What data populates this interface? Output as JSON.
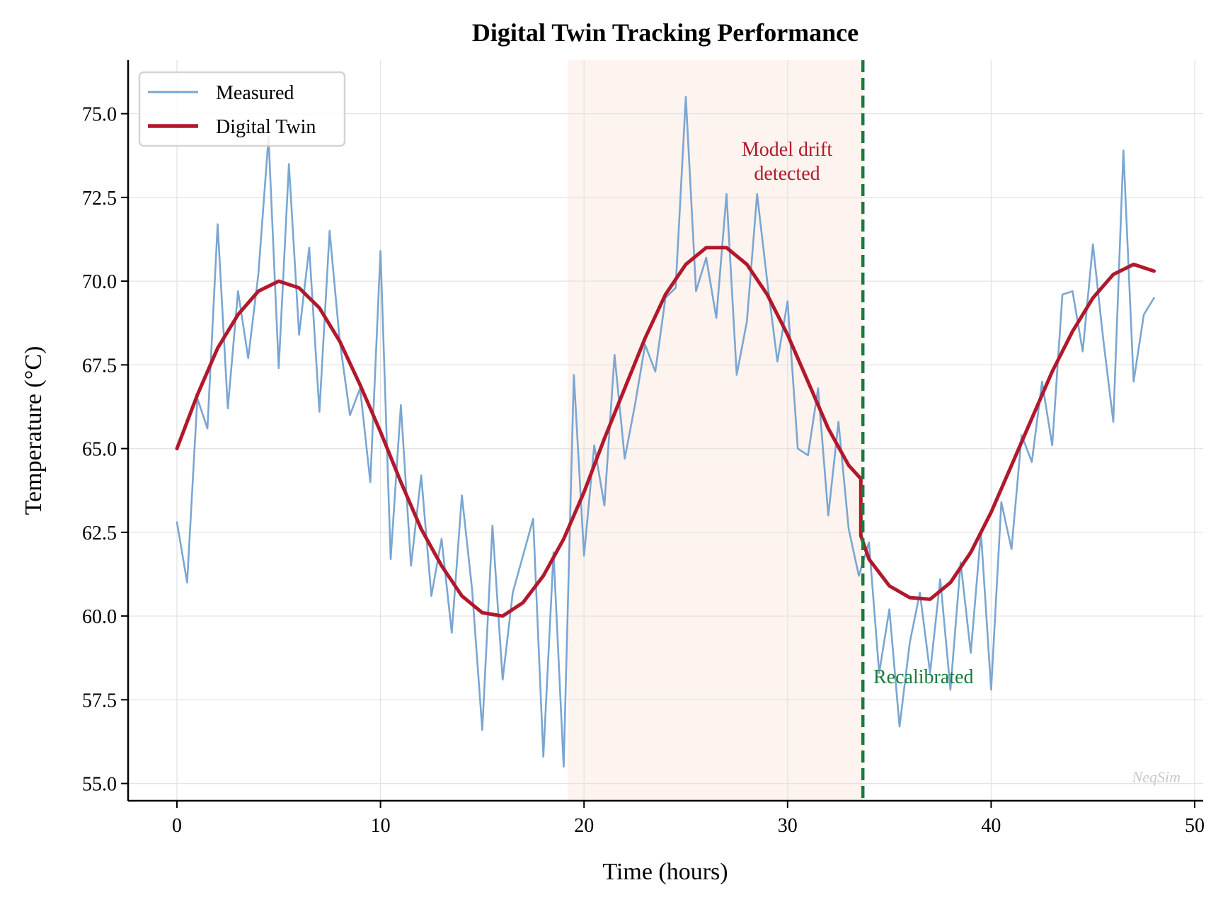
{
  "chart_data": {
    "type": "line",
    "title": "Digital Twin Tracking Performance",
    "xlabel": "Time (hours)",
    "ylabel": "Temperature (°C)",
    "xlim": [
      -2.4,
      50.2
    ],
    "ylim": [
      54.0,
      76.5
    ],
    "xticks": [
      0,
      10,
      20,
      30,
      40,
      50
    ],
    "xtick_labels": [
      "0",
      "10",
      "20",
      "30",
      "40",
      "50"
    ],
    "yticks": [
      55,
      57.5,
      60,
      62.5,
      65,
      67.5,
      70,
      72.5,
      75
    ],
    "ytick_labels": [
      "55.0",
      "57.5",
      "60.0",
      "62.5",
      "65.0",
      "67.5",
      "70.0",
      "72.5",
      "75.0"
    ],
    "grid": true,
    "legend_position": "top-left",
    "series": [
      {
        "name": "Measured",
        "color": "#7aa6d2",
        "x": [
          0,
          0.5,
          1,
          1.5,
          2,
          2.5,
          3,
          3.5,
          4,
          4.5,
          5,
          5.5,
          6,
          6.5,
          7,
          7.5,
          8,
          8.5,
          9,
          9.5,
          10,
          10.5,
          11,
          11.5,
          12,
          12.5,
          13,
          13.5,
          14,
          14.5,
          15,
          15.5,
          16,
          16.5,
          17,
          17.5,
          18,
          18.5,
          19,
          19.5,
          20,
          20.5,
          21,
          21.5,
          22,
          22.5,
          23,
          23.5,
          24,
          24.5,
          25,
          25.5,
          26,
          26.5,
          27,
          27.5,
          28,
          28.5,
          29,
          29.5,
          30,
          30.5,
          31,
          31.5,
          32,
          32.5,
          33,
          33.5,
          34,
          34.5,
          35,
          35.5,
          36,
          36.5,
          37,
          37.5,
          38,
          38.5,
          39,
          39.5,
          40,
          40.5,
          41,
          41.5,
          42,
          42.5,
          43,
          43.5,
          44,
          44.5,
          45,
          45.5,
          46,
          46.5,
          47,
          47.5,
          48
        ],
        "y": [
          62.8,
          61.0,
          66.5,
          65.6,
          71.7,
          66.2,
          69.7,
          67.7,
          70.2,
          74.3,
          67.4,
          73.5,
          68.4,
          71.0,
          66.1,
          71.5,
          68.2,
          66.0,
          66.8,
          64.0,
          70.9,
          61.7,
          66.3,
          61.5,
          64.2,
          60.6,
          62.3,
          59.5,
          63.6,
          60.8,
          56.6,
          62.7,
          58.1,
          60.7,
          61.8,
          62.9,
          55.8,
          61.9,
          55.5,
          67.2,
          61.8,
          65.1,
          63.3,
          67.8,
          64.7,
          66.3,
          68.1,
          67.3,
          69.5,
          69.8,
          75.5,
          69.7,
          70.7,
          68.9,
          72.6,
          67.2,
          68.8,
          72.6,
          70.0,
          67.6,
          69.4,
          65.0,
          64.8,
          66.8,
          63.0,
          65.8,
          62.6,
          61.2,
          62.2,
          58.3,
          60.2,
          56.7,
          59.2,
          60.7,
          58.3,
          61.1,
          57.8,
          61.6,
          58.9,
          62.5,
          57.8,
          63.4,
          62.0,
          65.4,
          64.6,
          67.0,
          65.1,
          69.6,
          69.7,
          67.9,
          71.1,
          68.3,
          65.8,
          73.9,
          67.0,
          69.0,
          69.5
        ]
      },
      {
        "name": "Digital Twin",
        "color": "#b2182b",
        "x": [
          0,
          1,
          2,
          3,
          4,
          5,
          6,
          7,
          8,
          9,
          10,
          11,
          12,
          13,
          14,
          15,
          16,
          17,
          18,
          19,
          20,
          21,
          22,
          23,
          24,
          25,
          26,
          27,
          28,
          29,
          30,
          31,
          32,
          33,
          33.6,
          33.6,
          34,
          35,
          36,
          37,
          38,
          39,
          40,
          41,
          42,
          43,
          44,
          45,
          46,
          47,
          48
        ],
        "y": [
          65.0,
          66.6,
          68.0,
          69.0,
          69.7,
          70.0,
          69.8,
          69.2,
          68.2,
          66.9,
          65.5,
          64.0,
          62.6,
          61.5,
          60.6,
          60.1,
          60.0,
          60.4,
          61.2,
          62.3,
          63.7,
          65.3,
          66.8,
          68.3,
          69.6,
          70.5,
          71.0,
          71.0,
          70.5,
          69.6,
          68.4,
          67.0,
          65.6,
          64.5,
          64.1,
          62.4,
          61.7,
          60.9,
          60.55,
          60.5,
          61.0,
          61.9,
          63.1,
          64.5,
          65.9,
          67.3,
          68.5,
          69.5,
          70.2,
          70.5,
          70.3
        ]
      }
    ],
    "shaded_region": {
      "x_start": 19.2,
      "x_end": 33.7,
      "color": "#fdf3ef"
    },
    "vertical_line": {
      "x": 33.7,
      "color": "#1a7a3a",
      "style": "dashed"
    },
    "annotations": [
      {
        "lines": [
          "Model drift",
          "detected"
        ],
        "x": 30.0,
        "y": 73.5,
        "color": "#b2182b"
      },
      {
        "text": "Recalibrated",
        "x": 34.2,
        "y": 58.0,
        "color": "#1a7a3a"
      }
    ],
    "watermark": "NeqSim"
  }
}
